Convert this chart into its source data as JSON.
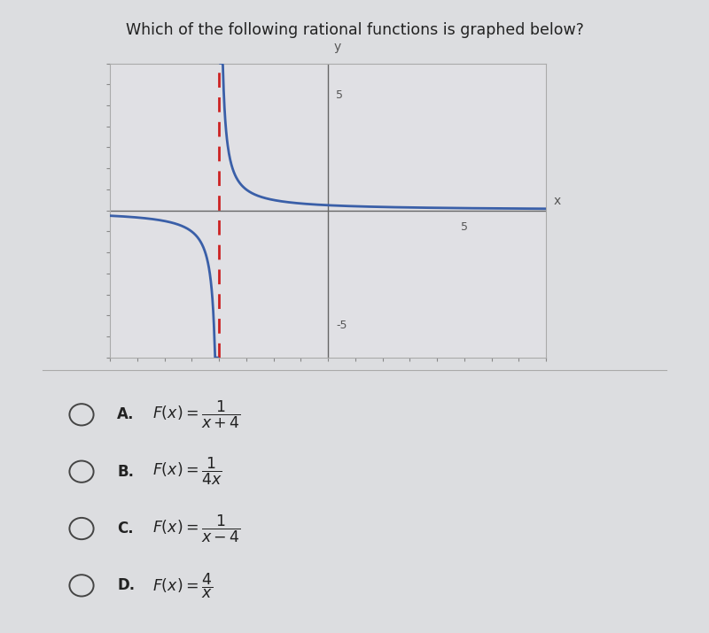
{
  "title": "Which of the following rational functions is graphed below?",
  "title_fontsize": 12.5,
  "title_color": "#222222",
  "background_color": "#dcdde0",
  "plot_bg_color": "#e0e0e4",
  "xlim": [
    -8,
    8
  ],
  "ylim": [
    -7,
    7
  ],
  "asymptote_x": -4,
  "curve_color": "#3a5fa8",
  "asymptote_color": "#cc2222",
  "curve_linewidth": 2.0,
  "asymptote_linewidth": 2.0,
  "option_fontsize": 12
}
